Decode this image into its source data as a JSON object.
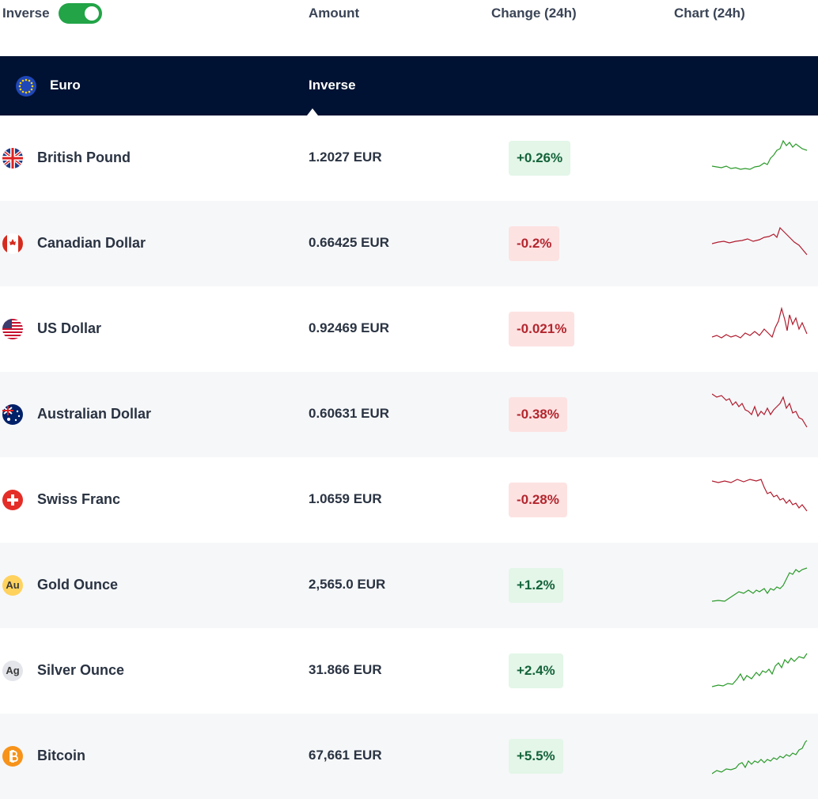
{
  "header": {
    "inverse_label": "Inverse",
    "columns": [
      "Amount",
      "Change (24h)",
      "Chart (24h)"
    ]
  },
  "base": {
    "currency": "Euro",
    "mode": "Inverse"
  },
  "rows": [
    {
      "name": "British Pound",
      "amount": "1.2027 EUR",
      "change": "+0.26%"
    },
    {
      "name": "Canadian Dollar",
      "amount": "0.66425 EUR",
      "change": "-0.2%"
    },
    {
      "name": "US Dollar",
      "amount": "0.92469 EUR",
      "change": "-0.021%"
    },
    {
      "name": "Australian Dollar",
      "amount": "0.60631 EUR",
      "change": "-0.38%"
    },
    {
      "name": "Swiss Franc",
      "amount": "1.0659 EUR",
      "change": "-0.28%"
    },
    {
      "name": "Gold Ounce",
      "amount": "2,565.0 EUR",
      "change": "+1.2%",
      "icon_text": "Au"
    },
    {
      "name": "Silver Ounce",
      "amount": "31.866 EUR",
      "change": "+2.4%",
      "icon_text": "Ag"
    },
    {
      "name": "Bitcoin",
      "amount": "67,661 EUR",
      "change": "+5.5%"
    }
  ]
}
